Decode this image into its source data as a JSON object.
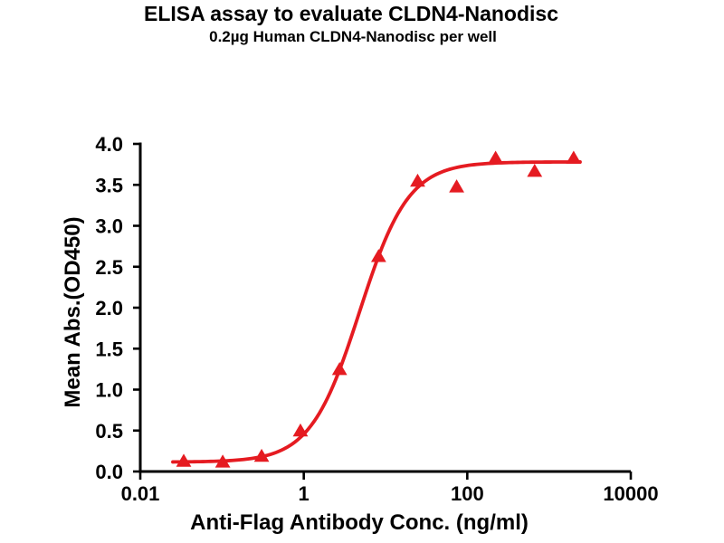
{
  "figure": {
    "background_color": "#ffffff",
    "text_color": "#000000",
    "accent_color": "#e51b21"
  },
  "chart_data": {
    "type": "scatter",
    "title": "ELISA assay to evaluate CLDN4-Nanodisc",
    "subtitle": "0.2µg Human CLDN4-Nanodisc per well",
    "xlabel": "Anti-Flag Antibody Conc. (ng/ml)",
    "ylabel": "Mean Abs.(OD450)",
    "x_scale": "log10",
    "xlim": [
      0.01,
      10000
    ],
    "x_tick_values": [
      0.01,
      1,
      100,
      10000
    ],
    "x_tick_labels": [
      "0.01",
      "1",
      "100",
      "10000"
    ],
    "ylim": [
      0,
      4
    ],
    "y_tick_values": [
      0,
      0.5,
      1,
      1.5,
      2,
      2.5,
      3,
      3.5,
      4
    ],
    "y_tick_labels": [
      "0.0",
      "0.5",
      "1.0",
      "1.5",
      "2.0",
      "2.5",
      "3.0",
      "3.5",
      "4.0"
    ],
    "grid": false,
    "legend": "none",
    "axis_color": "#000000",
    "series": [
      {
        "marker": "triangle-up",
        "color": "#e51b21",
        "x": [
          0.034,
          0.102,
          0.305,
          0.91,
          2.74,
          8.23,
          24.7,
          74.1,
          222,
          667,
          2000
        ],
        "y": [
          0.12,
          0.11,
          0.18,
          0.49,
          1.24,
          2.62,
          3.54,
          3.47,
          3.82,
          3.66,
          3.82
        ],
        "curve_fit": {
          "model": "4PL",
          "bottom": 0.115,
          "top": 3.78,
          "ec50": 4.8,
          "hill": 1.45,
          "x_range": [
            0.025,
            2400
          ],
          "color": "#e51b21"
        }
      }
    ]
  }
}
